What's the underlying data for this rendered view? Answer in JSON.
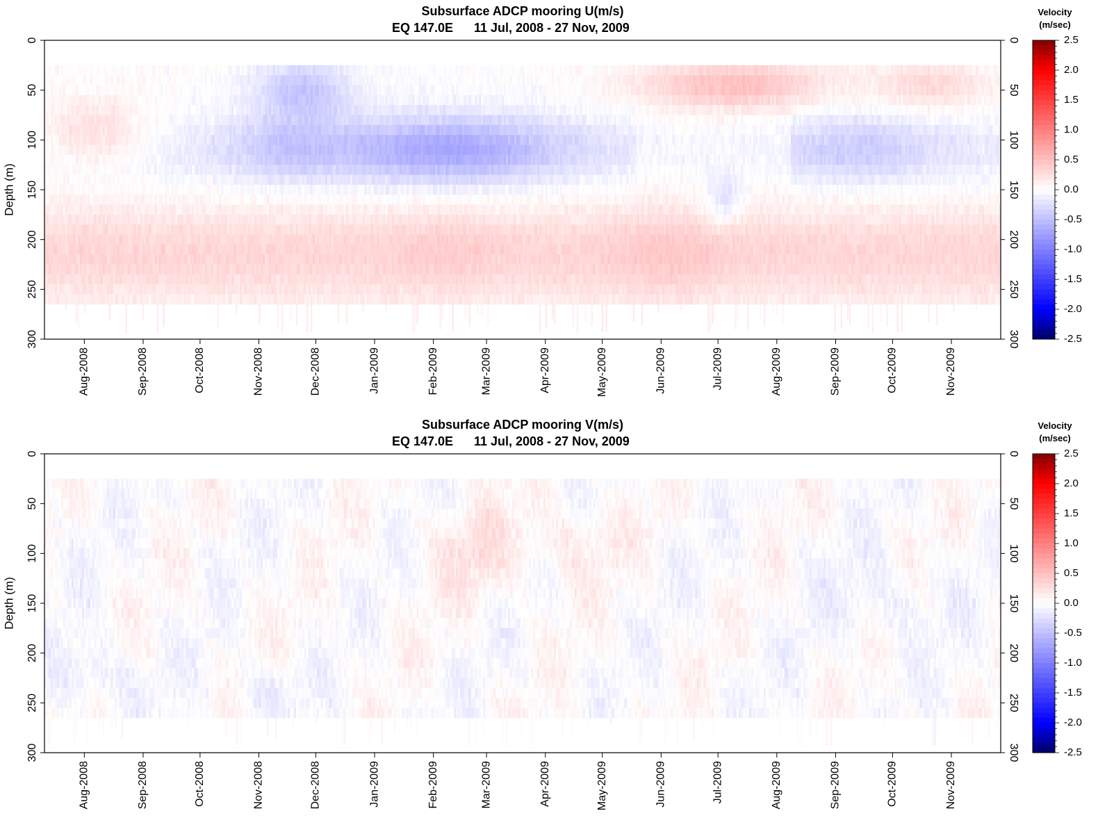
{
  "chart_data": [
    {
      "type": "heatmap",
      "title": "Subsurface ADCP mooring U(m/s)",
      "subtitle_location": "EQ 147.0E",
      "subtitle_range": "11 Jul, 2008 - 27 Nov, 2009",
      "ylabel": "Depth (m)",
      "ylim": [
        300,
        0
      ],
      "y_ticks": [
        "0",
        "50",
        "100",
        "150",
        "200",
        "250",
        "300"
      ],
      "x_ticks": [
        "Aug-2008",
        "Sep-2008",
        "Oct-2008",
        "Nov-2008",
        "Dec-2008",
        "Jan-2009",
        "Feb-2009",
        "Mar-2009",
        "Apr-2009",
        "May-2009",
        "Jun-2009",
        "Jul-2009",
        "Aug-2009",
        "Sep-2009",
        "Oct-2009",
        "Nov-2009"
      ],
      "data_depth_range_m": [
        25,
        265
      ],
      "colorbar_title": [
        "Velocity",
        "(m/sec)"
      ],
      "colorbar_range": [
        -2.5,
        2.5
      ],
      "colorbar_ticks": [
        "2.5",
        "2.0",
        "1.5",
        "1.0",
        "0.5",
        "0.0",
        "-0.5",
        "-1.0",
        "-1.5",
        "-2.0",
        "-2.5"
      ],
      "colormap": [
        "#000066",
        "#0000ff",
        "#ffffff",
        "#ff0000",
        "#800000"
      ],
      "structure": [
        {
          "period": "Jul-2008 to May-2009",
          "depth_m": [
            25,
            150
          ],
          "velocity_m_s": -0.5,
          "description": "westward (negative) flow, strongest ~ -0.8 near 110-130 m Jan-Mar 2009"
        },
        {
          "period": "Jun-2009 to Aug-2009",
          "depth_m": [
            25,
            70
          ],
          "velocity_m_s": 0.5,
          "description": "eastward near-surface flow"
        },
        {
          "period": "full record",
          "depth_m": [
            150,
            265
          ],
          "velocity_m_s": 0.4,
          "description": "eastward undercurrent-level flow"
        }
      ]
    },
    {
      "type": "heatmap",
      "title": "Subsurface ADCP mooring V(m/s)",
      "subtitle_location": "EQ 147.0E",
      "subtitle_range": "11 Jul, 2008 - 27 Nov, 2009",
      "ylabel": "Depth (m)",
      "ylim": [
        300,
        0
      ],
      "y_ticks": [
        "0",
        "50",
        "100",
        "150",
        "200",
        "250",
        "300"
      ],
      "x_ticks": [
        "Aug-2008",
        "Sep-2008",
        "Oct-2008",
        "Nov-2008",
        "Dec-2008",
        "Jan-2009",
        "Feb-2009",
        "Mar-2009",
        "Apr-2009",
        "May-2009",
        "Jun-2009",
        "Jul-2009",
        "Aug-2009",
        "Sep-2009",
        "Oct-2009",
        "Nov-2009"
      ],
      "data_depth_range_m": [
        25,
        265
      ],
      "colorbar_title": [
        "Velocity",
        "(m/sec)"
      ],
      "colorbar_range": [
        -2.5,
        2.5
      ],
      "colorbar_ticks": [
        "2.5",
        "2.0",
        "1.5",
        "1.0",
        "0.5",
        "0.0",
        "-0.5",
        "-1.0",
        "-1.5",
        "-2.0",
        "-2.5"
      ],
      "colormap": [
        "#000066",
        "#0000ff",
        "#ffffff",
        "#ff0000",
        "#800000"
      ],
      "structure": [
        {
          "period": "full record",
          "depth_m": [
            25,
            265
          ],
          "velocity_m_s": 0.0,
          "description": "weak meridional flow, mostly within +/-0.4 m/s, noisy"
        }
      ]
    }
  ]
}
